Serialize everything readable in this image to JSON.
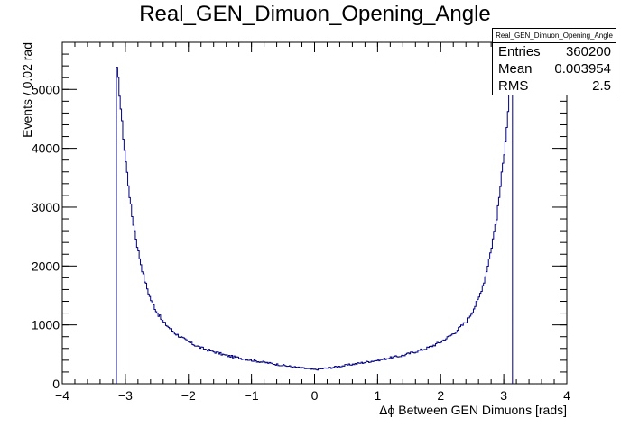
{
  "chart_data": {
    "type": "histogram",
    "title": "Real_GEN_Dimuon_Opening_Angle",
    "xlabel": "Δϕ Between GEN Dimuons [rads]",
    "ylabel": "Events / 0.02 rad",
    "xlim": [
      -4,
      4
    ],
    "ylim": [
      0,
      5800
    ],
    "x_ticks": [
      -4,
      -3,
      -2,
      -1,
      0,
      1,
      2,
      3,
      4
    ],
    "x_tick_labels": [
      "−4",
      "−3",
      "−2",
      "−1",
      "0",
      "1",
      "2",
      "3",
      "4"
    ],
    "y_ticks": [
      0,
      1000,
      2000,
      3000,
      4000,
      5000
    ],
    "y_tick_labels": [
      "0",
      "1000",
      "2000",
      "3000",
      "4000",
      "5000"
    ],
    "bin_range": [
      -3.1416,
      3.1416
    ],
    "curve_abs_dphi": [
      0,
      0.3,
      0.6,
      1.0,
      1.4,
      1.8,
      2.0,
      2.2,
      2.4,
      2.5,
      2.6,
      2.7,
      2.8,
      2.9,
      3.0,
      3.05,
      3.1,
      3.14
    ],
    "curve_values": [
      240,
      280,
      330,
      400,
      480,
      610,
      710,
      850,
      1050,
      1220,
      1440,
      1780,
      2280,
      2900,
      3850,
      4400,
      5050,
      5400
    ],
    "line_color": "#000080",
    "legend": null
  },
  "stats": {
    "title": "Real_GEN_Dimuon_Opening_Angle",
    "rows": [
      {
        "label": "Entries",
        "value": "360200"
      },
      {
        "label": "Mean",
        "value": "0.003954"
      },
      {
        "label": "RMS",
        "value": "2.5"
      }
    ]
  }
}
